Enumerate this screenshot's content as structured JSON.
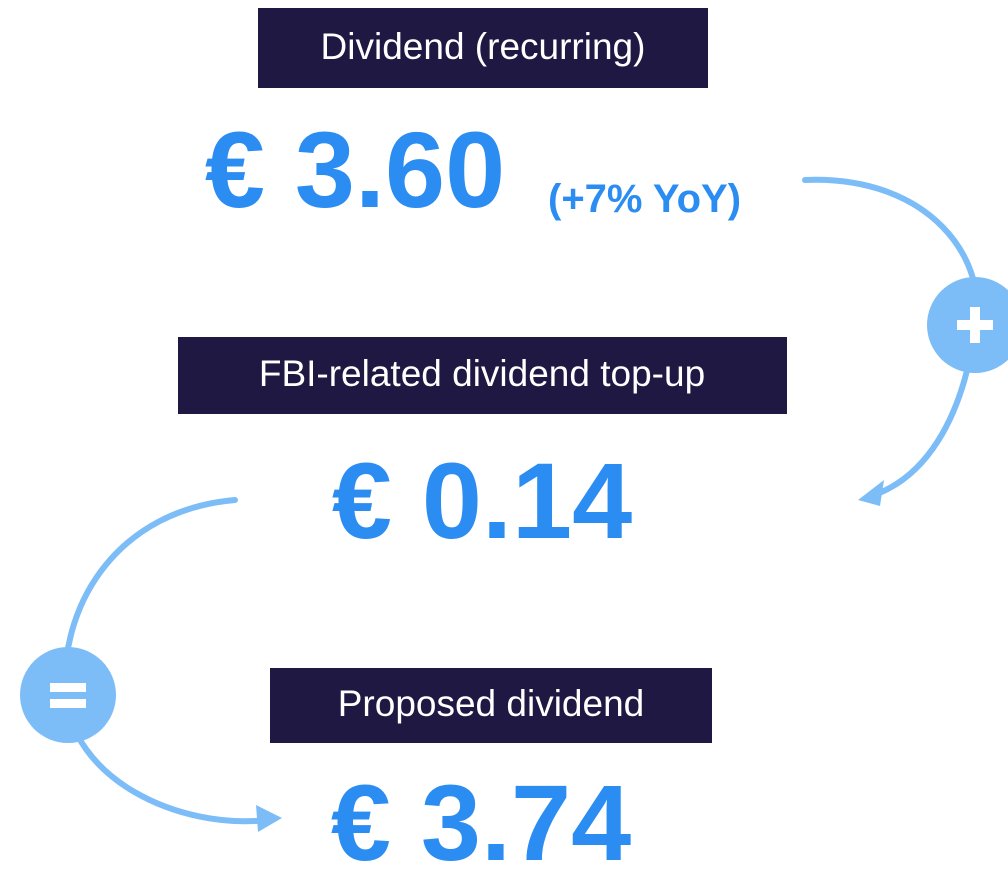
{
  "items": [
    {
      "label": "Dividend (recurring)",
      "amount": "€ 3.60",
      "note": "(+7% YoY)"
    },
    {
      "label": "FBI-related dividend top-up",
      "amount": "€ 0.14"
    },
    {
      "label": "Proposed dividend",
      "amount": "€ 3.74"
    }
  ]
}
